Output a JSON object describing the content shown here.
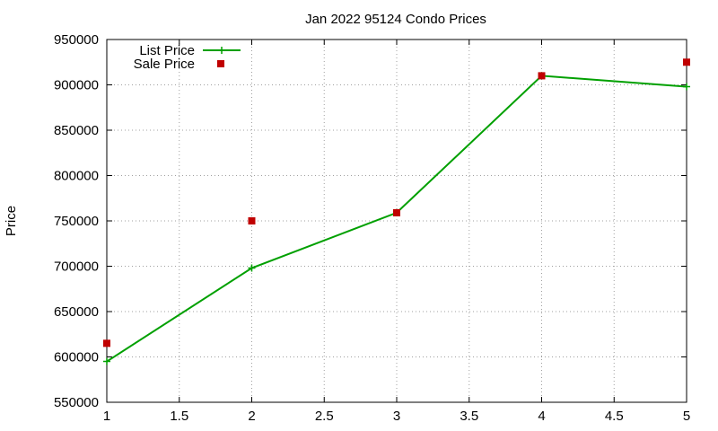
{
  "chart_data": {
    "type": "line",
    "title": "Jan 2022 95124 Condo Prices",
    "xlabel": "",
    "ylabel": "Price",
    "xlim": [
      1,
      5
    ],
    "ylim": [
      550000,
      950000
    ],
    "x_ticks": [
      "1",
      "1.5",
      "2",
      "2.5",
      "3",
      "3.5",
      "4",
      "4.5",
      "5"
    ],
    "y_ticks": [
      "550000",
      "600000",
      "650000",
      "700000",
      "750000",
      "800000",
      "850000",
      "900000",
      "950000"
    ],
    "grid": true,
    "legend_position": "top-left",
    "series": [
      {
        "name": "List Price",
        "style": "line+cross",
        "color": "#00a000",
        "x": [
          1,
          2,
          3,
          4,
          5
        ],
        "values": [
          595000,
          698000,
          759000,
          910000,
          898000
        ]
      },
      {
        "name": "Sale Price",
        "style": "square",
        "color": "#c00000",
        "x": [
          1,
          2,
          3,
          4,
          5
        ],
        "values": [
          615000,
          750000,
          759000,
          910000,
          925000
        ]
      }
    ]
  }
}
